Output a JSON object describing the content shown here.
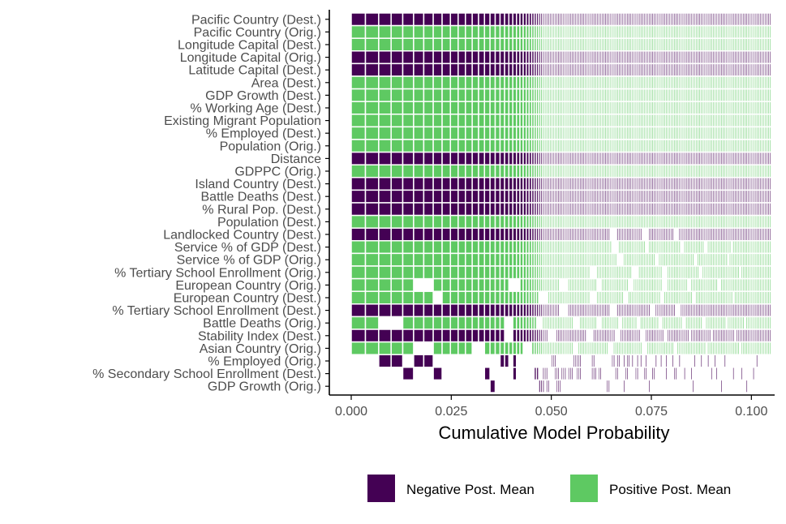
{
  "chart_data": {
    "type": "heatmap",
    "title": "",
    "xlabel": "Cumulative Model Probability",
    "ylabel": "",
    "xlim": [
      0,
      0.105
    ],
    "x_ticks": [
      "0.000",
      "0.025",
      "0.050",
      "0.075",
      "0.100"
    ],
    "x_tick_values": [
      0,
      0.025,
      0.05,
      0.075,
      0.1
    ],
    "variables": [
      {
        "label": "Pacific Country (Dest.)",
        "sign": "negative",
        "gaps": []
      },
      {
        "label": "Pacific Country (Orig.)",
        "sign": "positive",
        "gaps": []
      },
      {
        "label": "Longitude Capital (Dest.)",
        "sign": "positive",
        "gaps": []
      },
      {
        "label": "Longitude Capital (Orig.)",
        "sign": "negative",
        "gaps": []
      },
      {
        "label": "Latitude Capital (Dest.)",
        "sign": "negative",
        "gaps": []
      },
      {
        "label": "Area (Dest.)",
        "sign": "positive",
        "gaps": []
      },
      {
        "label": "GDP Growth (Dest.)",
        "sign": "positive",
        "gaps": []
      },
      {
        "label": "% Working Age (Dest.)",
        "sign": "positive",
        "gaps": []
      },
      {
        "label": "Existing Migrant Population",
        "sign": "positive",
        "gaps": []
      },
      {
        "label": "% Employed (Dest.)",
        "sign": "positive",
        "gaps": []
      },
      {
        "label": "Population (Orig.)",
        "sign": "positive",
        "gaps": []
      },
      {
        "label": "Distance",
        "sign": "negative",
        "gaps": []
      },
      {
        "label": "GDPPC (Orig.)",
        "sign": "positive",
        "gaps": []
      },
      {
        "label": "Island Country (Dest.)",
        "sign": "negative",
        "gaps": []
      },
      {
        "label": "Battle Deaths (Dest.)",
        "sign": "negative",
        "gaps": []
      },
      {
        "label": "% Rural Pop. (Dest.)",
        "sign": "negative",
        "gaps": []
      },
      {
        "label": "Population (Dest.)",
        "sign": "positive",
        "gaps": []
      },
      {
        "label": "Landlocked Country (Dest.)",
        "sign": "negative",
        "gaps": [
          [
            0.0648,
            0.0662
          ],
          [
            0.0728,
            0.0742
          ],
          [
            0.0808,
            0.0818
          ]
        ]
      },
      {
        "label": "Service % of GDP (Dest.)",
        "sign": "positive",
        "gaps": [
          [
            0.0652,
            0.0666
          ],
          [
            0.0733,
            0.0745
          ],
          [
            0.0823,
            0.0833
          ],
          [
            0.0882,
            0.0888
          ],
          [
            0.0948,
            0.0954
          ]
        ]
      },
      {
        "label": "Service % of GDP (Orig.)",
        "sign": "positive",
        "gaps": [
          [
            0.0664,
            0.0678
          ],
          [
            0.0758,
            0.0768
          ],
          [
            0.0858,
            0.0866
          ],
          [
            0.0939,
            0.0945
          ]
        ]
      },
      {
        "label": "% Tertiary School Enrollment (Orig.)",
        "sign": "positive",
        "gaps": [
          [
            0.0598,
            0.0612
          ],
          [
            0.0702,
            0.0716
          ],
          [
            0.0778,
            0.0788
          ],
          [
            0.0871,
            0.0879
          ],
          [
            0.0968,
            0.0974
          ]
        ]
      },
      {
        "label": "European Country (Orig.)",
        "sign": "positive",
        "gaps": [
          [
            0.0167,
            0.0198
          ],
          [
            0.0392,
            0.0418
          ],
          [
            0.0522,
            0.0542
          ],
          [
            0.0611,
            0.0627
          ],
          [
            0.0693,
            0.0705
          ],
          [
            0.0778,
            0.0789
          ],
          [
            0.0838,
            0.0847
          ],
          [
            0.0917,
            0.0925
          ]
        ]
      },
      {
        "label": "European Country (Dest.)",
        "sign": "positive",
        "gaps": [
          [
            0.0198,
            0.0223
          ],
          [
            0.0468,
            0.049
          ],
          [
            0.0596,
            0.0612
          ],
          [
            0.0681,
            0.0693
          ],
          [
            0.0772,
            0.0782
          ],
          [
            0.0854,
            0.0862
          ],
          [
            0.0952,
            0.0958
          ]
        ]
      },
      {
        "label": "% Tertiary School Enrollment (Dest.)",
        "sign": "negative",
        "gaps": [
          [
            0.0521,
            0.054
          ],
          [
            0.0648,
            0.0662
          ],
          [
            0.0748,
            0.0758
          ],
          [
            0.0812,
            0.0822
          ]
        ]
      },
      {
        "label": "Battle Deaths (Orig.)",
        "sign": "positive",
        "gaps": [
          [
            0.0066,
            0.0121
          ],
          [
            0.0385,
            0.0405
          ],
          [
            0.0461,
            0.0479
          ],
          [
            0.0553,
            0.0571
          ],
          [
            0.0613,
            0.0627
          ],
          [
            0.0667,
            0.0677
          ],
          [
            0.0712,
            0.0722
          ],
          [
            0.0768,
            0.0778
          ],
          [
            0.0828,
            0.0836
          ],
          [
            0.0878,
            0.0884
          ],
          [
            0.0935,
            0.0941
          ],
          [
            0.0981,
            0.0985
          ]
        ]
      },
      {
        "label": "Stability Index (Dest.)",
        "sign": "negative",
        "gaps": [
          [
            0.0388,
            0.0408
          ],
          [
            0.0492,
            0.051
          ],
          [
            0.0587,
            0.0603
          ],
          [
            0.0661,
            0.0673
          ],
          [
            0.0723,
            0.0733
          ],
          [
            0.0781,
            0.0789
          ],
          [
            0.0842,
            0.0848
          ],
          [
            0.0899,
            0.0903
          ],
          [
            0.0958,
            0.0962
          ]
        ]
      },
      {
        "label": "Asian Country (Orig.)",
        "sign": "positive",
        "gaps": [
          [
            0.0166,
            0.0195
          ],
          [
            0.0302,
            0.0328
          ],
          [
            0.0429,
            0.0451
          ],
          [
            0.0552,
            0.0566
          ],
          [
            0.0641,
            0.0653
          ],
          [
            0.0727,
            0.0737
          ],
          [
            0.0806,
            0.0814
          ],
          [
            0.0886,
            0.0892
          ],
          [
            0.0968,
            0.0972
          ]
        ]
      },
      {
        "label": "% Employed (Orig.)",
        "sign": "negative",
        "present": [
          [
            0.0068,
            0.0118
          ],
          [
            0.0167,
            0.0198
          ],
          [
            0.0375,
            0.0393
          ],
          [
            0.0399,
            0.0417
          ],
          [
            0.0498,
            0.051
          ],
          [
            0.0556,
            0.0566
          ],
          [
            0.0567,
            0.0577
          ],
          [
            0.0601,
            0.061
          ],
          [
            0.0652,
            0.066
          ],
          [
            0.0665,
            0.0673
          ],
          [
            0.0678,
            0.0685
          ],
          [
            0.069,
            0.0696
          ],
          [
            0.07,
            0.0706
          ],
          [
            0.0712,
            0.0718
          ],
          [
            0.0722,
            0.0728
          ],
          [
            0.0734,
            0.074
          ],
          [
            0.0758,
            0.0763
          ],
          [
            0.0771,
            0.0776
          ],
          [
            0.0785,
            0.0789
          ],
          [
            0.0803,
            0.0807
          ],
          [
            0.0818,
            0.0822
          ],
          [
            0.0858,
            0.0862
          ],
          [
            0.0872,
            0.0876
          ],
          [
            0.0891,
            0.0895
          ],
          [
            0.0906,
            0.0909
          ],
          [
            0.0934,
            0.0937
          ],
          [
            0.0956,
            0.0959
          ],
          [
            0.0985,
            0.0988
          ],
          [
            0.1012,
            0.1015
          ]
        ]
      },
      {
        "label": "% Secondary School Enrollment (Dest.)",
        "sign": "negative",
        "present": [
          [
            0.0125,
            0.0162
          ],
          [
            0.0205,
            0.0228
          ],
          [
            0.0328,
            0.0342
          ],
          [
            0.0399,
            0.0417
          ],
          [
            0.0456,
            0.047
          ],
          [
            0.0479,
            0.0491
          ],
          [
            0.0508,
            0.052
          ],
          [
            0.0524,
            0.0536
          ],
          [
            0.0541,
            0.0553
          ],
          [
            0.0564,
            0.0574
          ],
          [
            0.0602,
            0.0611
          ],
          [
            0.0618,
            0.0627
          ],
          [
            0.0658,
            0.0666
          ],
          [
            0.0686,
            0.0693
          ],
          [
            0.0709,
            0.0716
          ],
          [
            0.0731,
            0.0738
          ],
          [
            0.0752,
            0.0758
          ],
          [
            0.0783,
            0.0788
          ],
          [
            0.0808,
            0.0813
          ],
          [
            0.0831,
            0.0835
          ],
          [
            0.0849,
            0.0853
          ],
          [
            0.0868,
            0.0871
          ],
          [
            0.0884,
            0.0887
          ],
          [
            0.0898,
            0.0901
          ],
          [
            0.0912,
            0.0915
          ],
          [
            0.0931,
            0.0934
          ],
          [
            0.0953,
            0.0956
          ],
          [
            0.0974,
            0.0977
          ],
          [
            0.1004,
            0.1007
          ]
        ]
      },
      {
        "label": "GDP Growth (Orig.)",
        "sign": "negative",
        "present": [
          [
            0.0347,
            0.0365
          ],
          [
            0.0467,
            0.0481
          ],
          [
            0.0487,
            0.0497
          ],
          [
            0.0514,
            0.0526
          ],
          [
            0.0636,
            0.0645
          ],
          [
            0.0678,
            0.0686
          ],
          [
            0.0743,
            0.0749
          ],
          [
            0.0854,
            0.0858
          ],
          [
            0.0924,
            0.0927
          ],
          [
            0.0987,
            0.099
          ]
        ]
      }
    ],
    "legend": [
      {
        "label": "Negative Post. Mean",
        "color": "#440154"
      },
      {
        "label": "Positive Post. Mean",
        "color": "#5ec962"
      }
    ],
    "legend_position": "bottom"
  },
  "colors": {
    "negative": "#440154",
    "positive": "#5ec962",
    "grid_line": "#ffffff",
    "axis": "#000000",
    "label_text": "#4d4d4d"
  }
}
